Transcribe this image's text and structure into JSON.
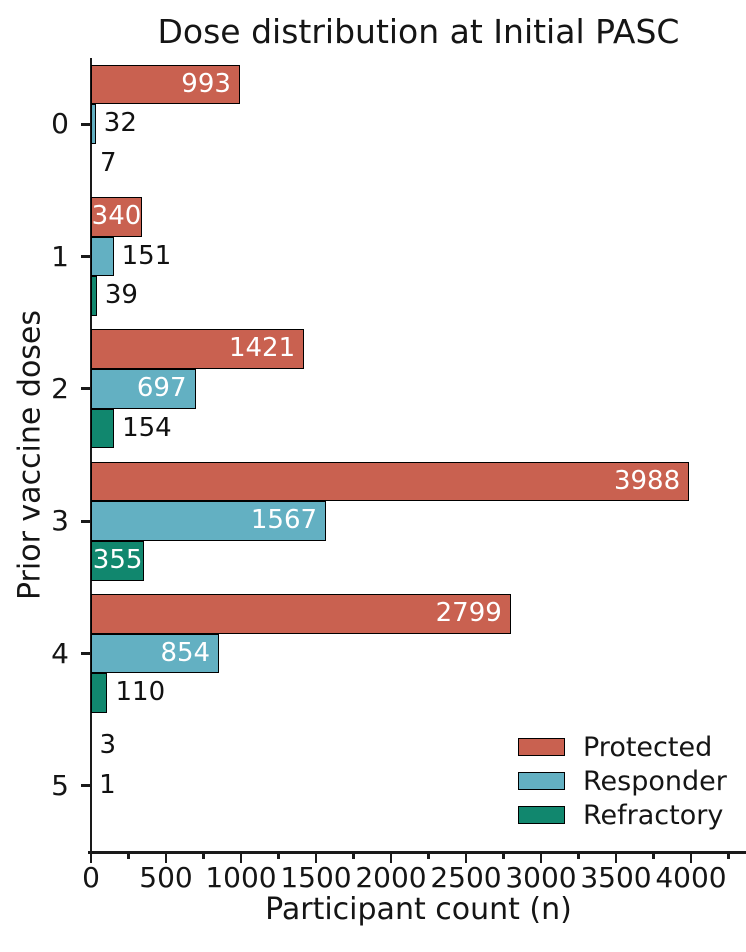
{
  "chart_data": {
    "type": "bar",
    "orientation": "horizontal",
    "title": "Dose distribution at Initial PASC",
    "xlabel": "Participant count (n)",
    "ylabel": "Prior vaccine doses",
    "categories": [
      "0",
      "1",
      "2",
      "3",
      "4",
      "5"
    ],
    "series": [
      {
        "name": "Protected",
        "color": "#C96150",
        "values": [
          993,
          340,
          1421,
          3988,
          2799,
          3
        ]
      },
      {
        "name": "Responder",
        "color": "#63B0C2",
        "values": [
          32,
          151,
          697,
          1567,
          854,
          1
        ]
      },
      {
        "name": "Refractory",
        "color": "#11876E",
        "values": [
          7,
          39,
          154,
          355,
          110,
          0
        ]
      }
    ],
    "xlim": [
      0,
      4367
    ],
    "xticks": [
      0,
      500,
      1000,
      1500,
      2000,
      2500,
      3000,
      3500,
      4000
    ],
    "xtick_labels": [
      "0",
      "500",
      "1000",
      "1500",
      "2000",
      "2500",
      "3000",
      "3500",
      "4000"
    ],
    "minor_xtick_step": 250,
    "grid": false,
    "bar_edge_color": "#000000",
    "bar_label_color_inside": "#ffffff",
    "bar_label_color_outside": "#111111",
    "legend": {
      "position": "lower right",
      "frame": false,
      "entries": [
        "Protected",
        "Responder",
        "Refractory"
      ]
    }
  }
}
